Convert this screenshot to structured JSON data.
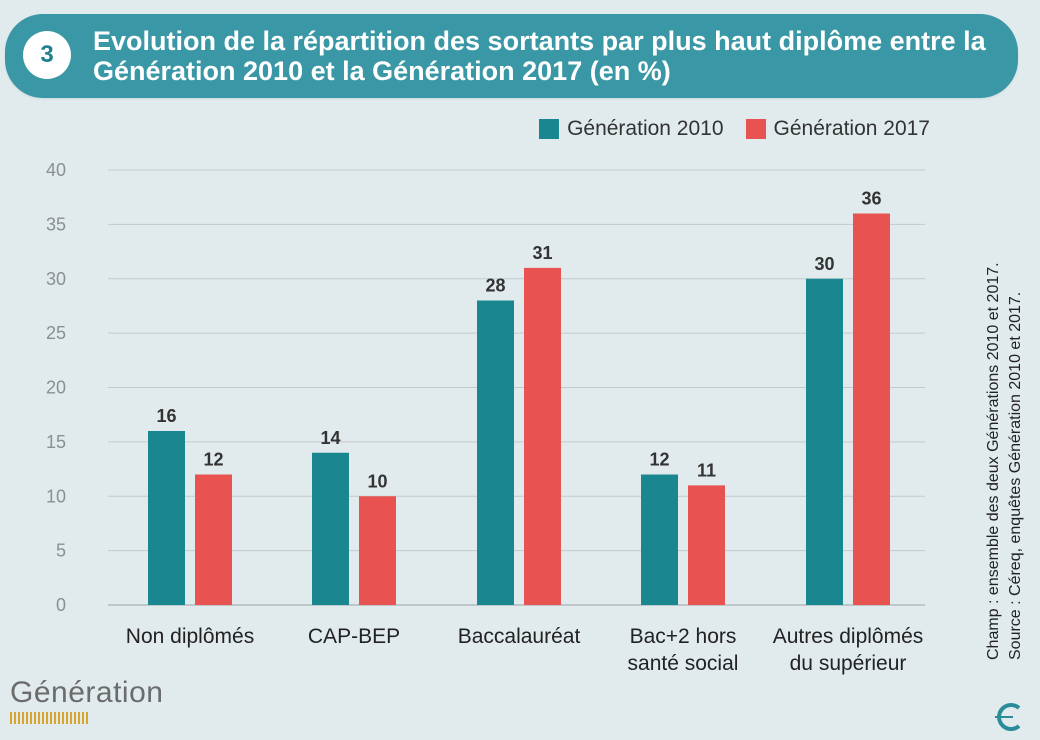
{
  "header": {
    "number": "3",
    "title": "Evolution de la répartition des sortants par plus haut diplôme entre la Génération 2010 et la Génération 2017 (en %)"
  },
  "legend": [
    {
      "label": "Génération 2010",
      "color": "#1a8790"
    },
    {
      "label": "Génération 2017",
      "color": "#e85352"
    }
  ],
  "side_note": {
    "champ": "Champ : ensemble des deux Générations 2010 et 2017.",
    "source": "Source : Céreq, enquêtes Génération 2010 et 2017."
  },
  "logo": {
    "text": "Génération"
  },
  "chart_data": {
    "type": "bar",
    "title": "Evolution de la répartition des sortants par plus haut diplôme entre la Génération 2010 et la Génération 2017 (en %)",
    "categories": [
      [
        "Non diplômés"
      ],
      [
        "CAP-BEP"
      ],
      [
        "Baccalauréat"
      ],
      [
        "Bac+2 hors",
        "santé social"
      ],
      [
        "Autres diplômés",
        "du supérieur"
      ]
    ],
    "series": [
      {
        "name": "Génération 2010",
        "values": [
          16,
          14,
          28,
          12,
          30
        ],
        "color": "#1a8790"
      },
      {
        "name": "Génération 2017",
        "values": [
          12,
          10,
          31,
          11,
          36
        ],
        "color": "#e85352"
      }
    ],
    "ylim": [
      0,
      40
    ],
    "yticks": [
      0,
      5,
      10,
      15,
      20,
      25,
      30,
      35,
      40
    ],
    "grid": true,
    "legend_position": "top-right"
  }
}
